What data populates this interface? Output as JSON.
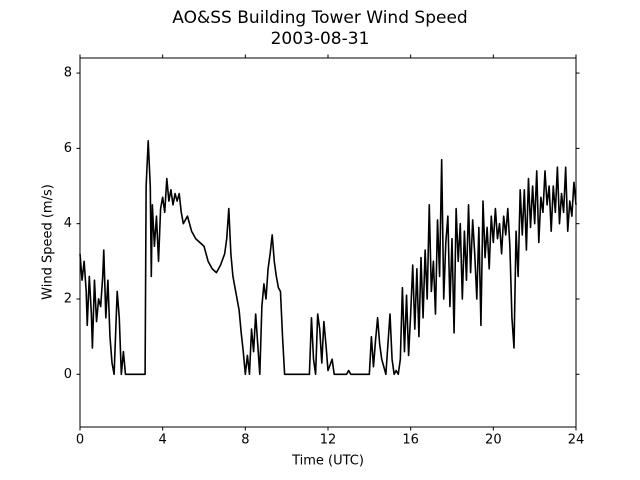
{
  "chart_data": {
    "type": "line",
    "title": "AO&SS Building Tower Wind Speed",
    "subtitle": "2003-08-31",
    "xlabel": "Time (UTC)",
    "ylabel": "Wind Speed (m/s)",
    "xlim": [
      0,
      24
    ],
    "xticks": [
      0,
      4,
      8,
      12,
      16,
      20,
      24
    ],
    "ylim": [
      -1.4,
      8.4
    ],
    "yticks": [
      0,
      2,
      4,
      6,
      8
    ],
    "grid": false,
    "series": [
      {
        "name": "Wind Speed",
        "color": "#000000",
        "x": [
          0.0,
          0.1,
          0.2,
          0.3,
          0.35,
          0.45,
          0.55,
          0.6,
          0.7,
          0.8,
          0.9,
          1.0,
          1.1,
          1.15,
          1.25,
          1.35,
          1.45,
          1.55,
          1.65,
          1.8,
          1.9,
          2.0,
          2.1,
          2.2,
          3.15,
          3.2,
          3.3,
          3.4,
          3.45,
          3.5,
          3.6,
          3.7,
          3.8,
          3.9,
          4.0,
          4.1,
          4.2,
          4.3,
          4.4,
          4.5,
          4.6,
          4.7,
          4.8,
          4.9,
          5.0,
          5.2,
          5.4,
          5.6,
          5.8,
          6.0,
          6.2,
          6.4,
          6.6,
          6.8,
          7.0,
          7.1,
          7.2,
          7.3,
          7.4,
          7.5,
          7.6,
          7.7,
          7.8,
          7.9,
          8.0,
          8.1,
          8.2,
          8.3,
          8.4,
          8.5,
          8.6,
          8.7,
          8.8,
          8.9,
          9.0,
          9.1,
          9.2,
          9.3,
          9.4,
          9.5,
          9.6,
          9.7,
          9.8,
          9.9,
          11.0,
          11.1,
          11.2,
          11.3,
          11.4,
          11.5,
          11.6,
          11.7,
          11.8,
          11.9,
          12.0,
          12.2,
          12.3,
          12.9,
          13.0,
          13.1,
          14.0,
          14.1,
          14.2,
          14.3,
          14.4,
          14.5,
          14.6,
          14.7,
          14.8,
          14.9,
          15.0,
          15.1,
          15.2,
          15.3,
          15.4,
          15.5,
          15.6,
          15.7,
          15.8,
          15.9,
          16.0,
          16.1,
          16.2,
          16.3,
          16.4,
          16.5,
          16.6,
          16.7,
          16.8,
          16.9,
          17.0,
          17.1,
          17.2,
          17.3,
          17.4,
          17.5,
          17.6,
          17.7,
          17.8,
          17.9,
          18.0,
          18.1,
          18.2,
          18.3,
          18.4,
          18.5,
          18.6,
          18.7,
          18.8,
          18.9,
          19.0,
          19.1,
          19.2,
          19.3,
          19.4,
          19.5,
          19.6,
          19.7,
          19.8,
          19.9,
          20.0,
          20.1,
          20.2,
          20.3,
          20.4,
          20.5,
          20.6,
          20.7,
          20.8,
          20.9,
          21.0,
          21.1,
          21.2,
          21.3,
          21.4,
          21.5,
          21.6,
          21.7,
          21.8,
          21.9,
          22.0,
          22.1,
          22.2,
          22.3,
          22.4,
          22.5,
          22.6,
          22.7,
          22.8,
          22.9,
          23.0,
          23.1,
          23.2,
          23.3,
          23.4,
          23.5,
          23.6,
          23.7,
          23.8,
          23.9,
          24.0
        ],
        "values": [
          3.2,
          2.5,
          3.0,
          2.2,
          1.3,
          2.6,
          1.6,
          0.7,
          2.5,
          1.4,
          2.0,
          1.8,
          2.6,
          3.3,
          1.5,
          2.5,
          1.0,
          0.3,
          0.0,
          2.2,
          1.5,
          0.0,
          0.6,
          0.0,
          0.0,
          5.0,
          6.2,
          5.0,
          2.6,
          4.5,
          3.4,
          4.2,
          3.0,
          4.4,
          4.7,
          4.3,
          5.2,
          4.6,
          4.9,
          4.5,
          4.8,
          4.6,
          4.8,
          4.3,
          4.0,
          4.2,
          3.8,
          3.6,
          3.5,
          3.4,
          3.0,
          2.8,
          2.7,
          2.9,
          3.2,
          3.6,
          4.4,
          3.2,
          2.6,
          2.3,
          2.0,
          1.7,
          1.1,
          0.6,
          0.0,
          0.5,
          0.0,
          1.2,
          0.6,
          1.6,
          0.8,
          0.0,
          1.8,
          2.4,
          2.0,
          2.8,
          3.2,
          3.7,
          3.0,
          2.6,
          2.3,
          2.2,
          1.0,
          0.0,
          0.0,
          0.0,
          1.5,
          0.4,
          0.0,
          1.6,
          1.2,
          0.3,
          1.4,
          0.8,
          0.1,
          0.4,
          0.0,
          0.0,
          0.1,
          0.0,
          0.0,
          1.0,
          0.2,
          0.9,
          1.5,
          0.8,
          0.4,
          0.2,
          0.0,
          0.8,
          1.6,
          0.4,
          0.0,
          0.1,
          0.0,
          0.4,
          2.3,
          0.6,
          2.1,
          0.5,
          1.6,
          2.9,
          1.2,
          2.8,
          1.0,
          3.1,
          1.5,
          3.3,
          2.0,
          4.5,
          2.2,
          3.0,
          1.6,
          4.1,
          2.6,
          5.7,
          2.0,
          3.5,
          4.2,
          1.8,
          3.6,
          1.1,
          4.4,
          3.0,
          4.0,
          2.0,
          3.8,
          2.5,
          4.5,
          2.7,
          4.1,
          3.2,
          2.0,
          3.9,
          1.3,
          4.6,
          3.1,
          3.9,
          2.8,
          4.2,
          3.5,
          4.4,
          3.6,
          4.0,
          3.2,
          4.2,
          3.7,
          4.4,
          3.4,
          1.5,
          0.7,
          3.8,
          2.6,
          4.9,
          3.7,
          4.9,
          3.3,
          5.2,
          3.9,
          5.0,
          4.0,
          5.4,
          3.5,
          4.7,
          4.3,
          5.4,
          4.5,
          5.0,
          3.8,
          5.0,
          4.3,
          5.5,
          4.0,
          4.8,
          4.3,
          5.5,
          3.8,
          4.6,
          4.2,
          5.1,
          4.5
        ]
      }
    ]
  }
}
